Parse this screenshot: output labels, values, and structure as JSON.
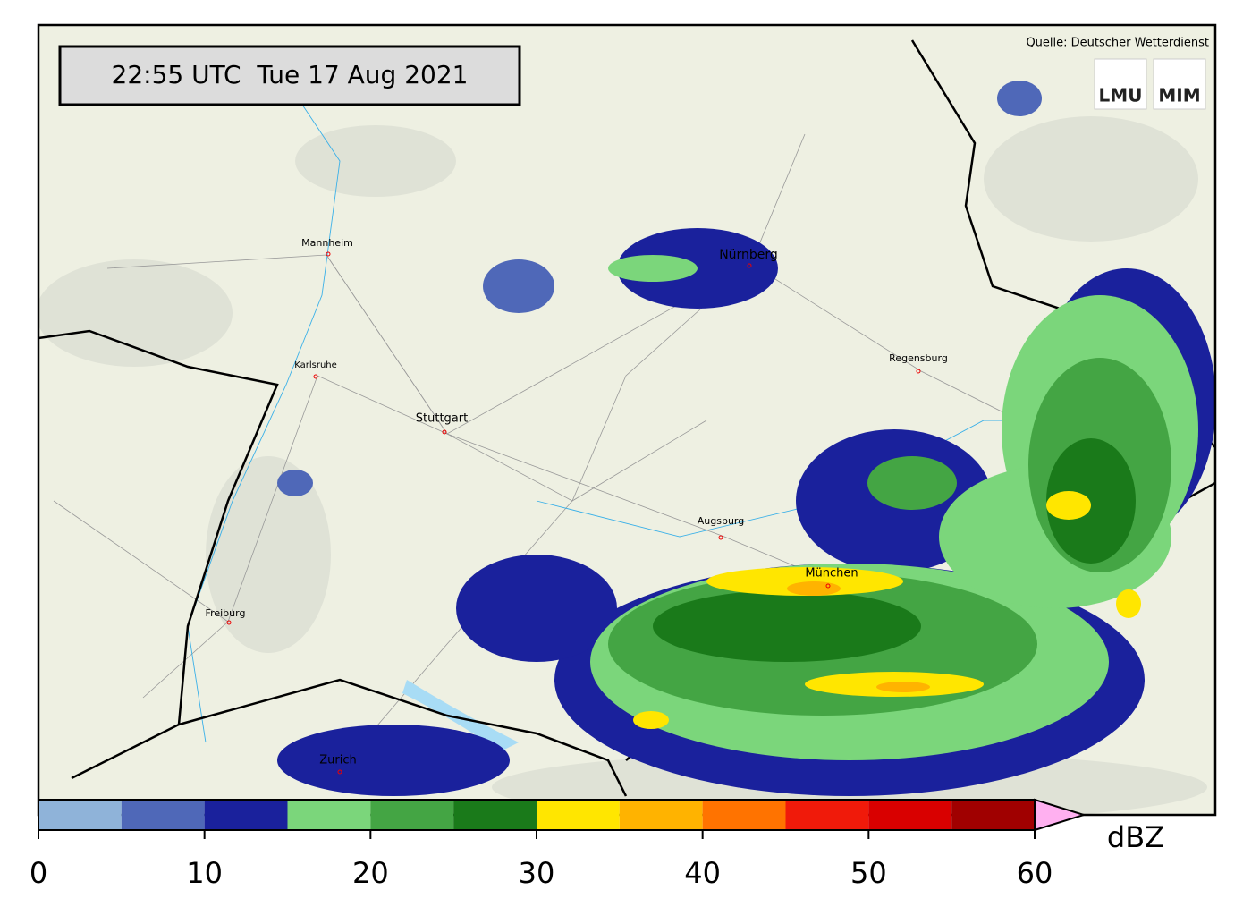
{
  "map": {
    "timestamp": "22:55 UTC  Tue 17 Aug 2021",
    "source": "Quelle: Deutscher Wetterdienst",
    "logos": [
      "LMU",
      "MIM"
    ],
    "cities": [
      "Mannheim",
      "Karlsruhe",
      "Stuttgart",
      "Nürnberg",
      "Regensburg",
      "Augsburg",
      "München",
      "Freiburg",
      "Zurich"
    ]
  },
  "colorbar": {
    "bins": [
      0,
      5,
      10,
      15,
      20,
      25,
      30,
      35,
      40,
      45,
      50,
      55,
      60
    ],
    "colors": [
      "#8fb3d9",
      "#4f68b8",
      "#1a219c",
      "#7bd67b",
      "#44a544",
      "#1a7a1a",
      "#ffe600",
      "#ffb300",
      "#ff7300",
      "#f01a0a",
      "#d90000",
      "#a00000"
    ],
    "extend_color": "#ffb0f0",
    "ticks": [
      0,
      10,
      20,
      30,
      40,
      50,
      60
    ],
    "unit": "dBZ"
  }
}
